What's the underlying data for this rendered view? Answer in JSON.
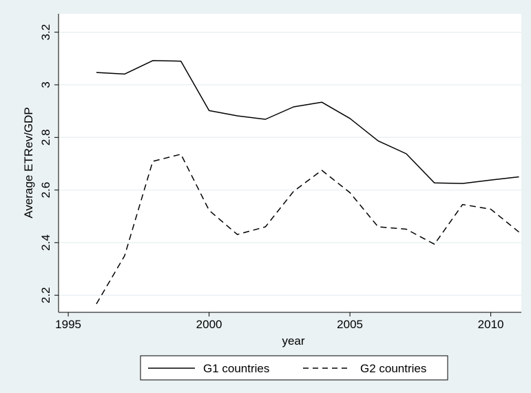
{
  "chart_data": {
    "type": "line",
    "title": "",
    "xlabel": "year",
    "ylabel": "Average ETRev/GDP",
    "xlim": [
      1996,
      2011
    ],
    "ylim": [
      2.17,
      3.2
    ],
    "x_ticks": [
      1995,
      2000,
      2005,
      2010
    ],
    "y_ticks": [
      2.2,
      2.4,
      2.6,
      2.8,
      3,
      3.2
    ],
    "x_tick_labels": [
      "1995",
      "2000",
      "2005",
      "2010"
    ],
    "y_tick_labels": [
      "2.2",
      "2.4",
      "2.6",
      "2.8",
      "3",
      "3.2"
    ],
    "grid": "horizontal",
    "legend_position": "bottom",
    "x": [
      1996,
      1997,
      1998,
      1999,
      2000,
      2001,
      2002,
      2003,
      2004,
      2005,
      2006,
      2007,
      2008,
      2009,
      2010,
      2011
    ],
    "series": [
      {
        "name": "G1 countries",
        "style": "solid",
        "color": "#000000",
        "values": [
          3.047,
          3.041,
          3.092,
          3.09,
          2.902,
          2.882,
          2.869,
          2.916,
          2.934,
          2.872,
          2.787,
          2.738,
          2.627,
          2.625,
          2.638,
          2.65
        ]
      },
      {
        "name": "G2 countries",
        "style": "dashed",
        "color": "#000000",
        "values": [
          2.167,
          2.35,
          2.709,
          2.736,
          2.523,
          2.431,
          2.46,
          2.595,
          2.675,
          2.59,
          2.46,
          2.451,
          2.394,
          2.545,
          2.527,
          2.44
        ]
      }
    ]
  }
}
